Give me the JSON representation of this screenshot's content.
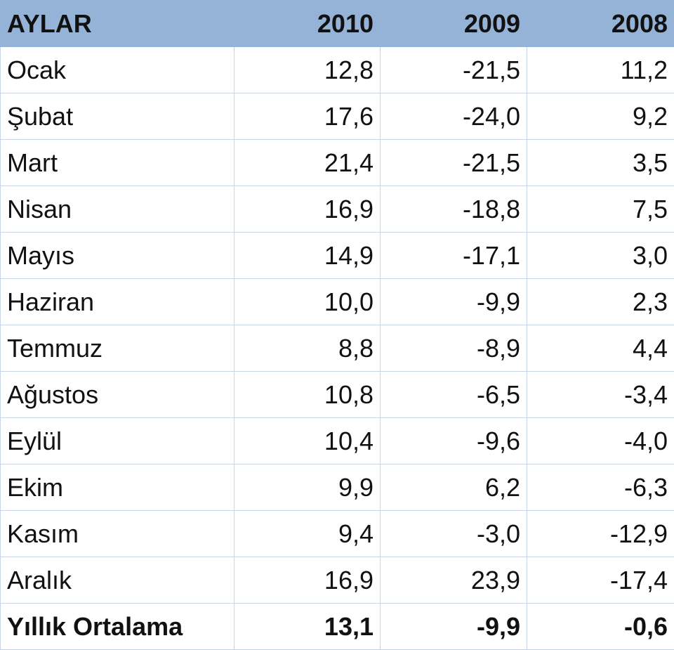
{
  "table": {
    "header": [
      "AYLAR",
      "2010",
      "2009",
      "2008"
    ],
    "rows": [
      [
        "Ocak",
        "12,8",
        "-21,5",
        "11,2"
      ],
      [
        "Şubat",
        "17,6",
        "-24,0",
        "9,2"
      ],
      [
        "Mart",
        "21,4",
        "-21,5",
        "3,5"
      ],
      [
        "Nisan",
        "16,9",
        "-18,8",
        "7,5"
      ],
      [
        "Mayıs",
        "14,9",
        "-17,1",
        "3,0"
      ],
      [
        "Haziran",
        "10,0",
        "-9,9",
        "2,3"
      ],
      [
        "Temmuz",
        "8,8",
        "-8,9",
        "4,4"
      ],
      [
        "Ağustos",
        "10,8",
        "-6,5",
        "-3,4"
      ],
      [
        "Eylül",
        "10,4",
        "-9,6",
        "-4,0"
      ],
      [
        "Ekim",
        "9,9",
        "6,2",
        "-6,3"
      ],
      [
        "Kasım",
        "9,4",
        "-3,0",
        "-12,9"
      ],
      [
        "Aralık",
        "16,9",
        "23,9",
        "-17,4"
      ]
    ],
    "total": [
      "Yıllık Ortalama",
      "13,1",
      "-9,9",
      "-0,6"
    ]
  }
}
